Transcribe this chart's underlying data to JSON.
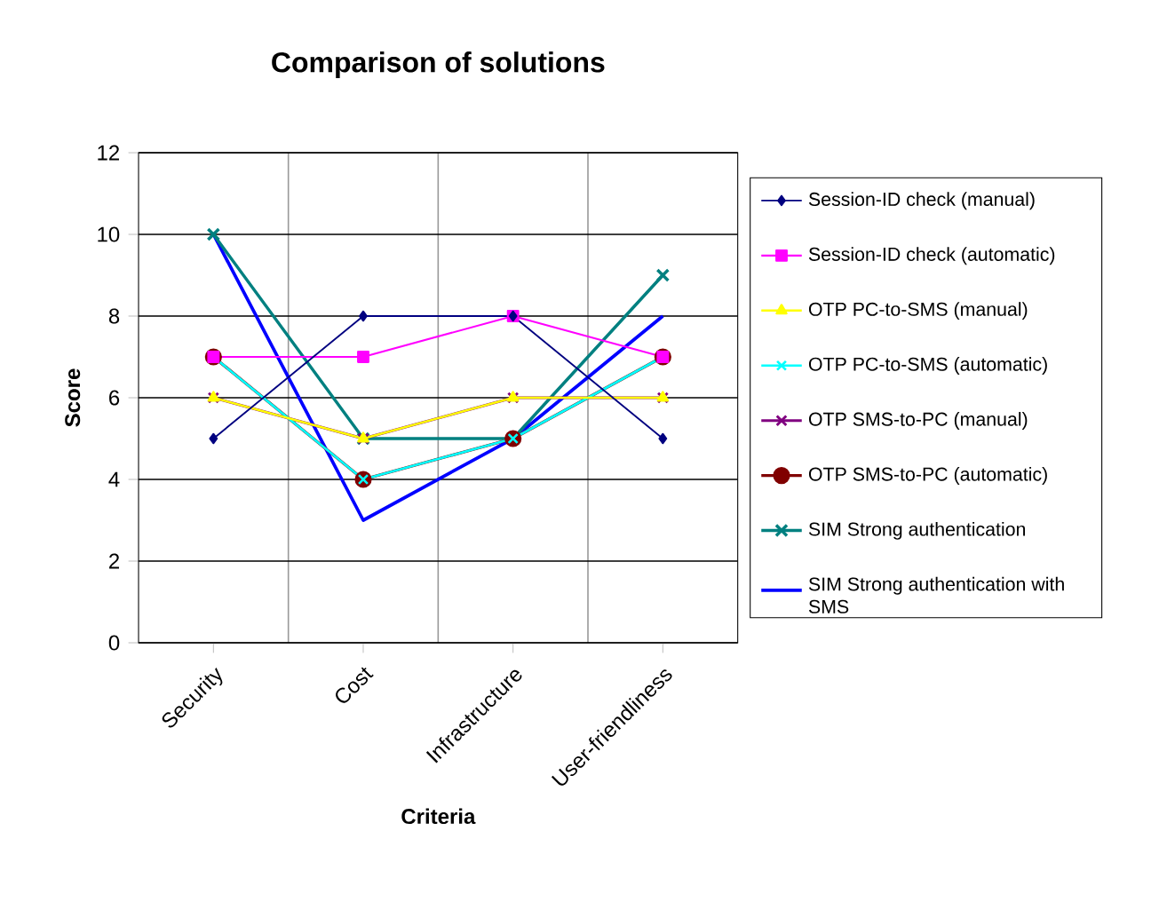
{
  "chart_data": {
    "type": "line",
    "title": "Comparison of solutions",
    "xlabel": "Criteria",
    "ylabel": "Score",
    "categories": [
      "Security",
      "Cost",
      "Infrastructure",
      "User-friendliness"
    ],
    "ylim": [
      0,
      12
    ],
    "yticks": [
      0,
      2,
      4,
      6,
      8,
      10,
      12
    ],
    "grid": true,
    "legend": "right",
    "series": [
      {
        "name": "Session-ID check (manual)",
        "color": "#000080",
        "marker": "diamond",
        "values": [
          5,
          8,
          8,
          5
        ]
      },
      {
        "name": "Session-ID check (automatic)",
        "color": "#ff00ff",
        "marker": "square",
        "values": [
          7,
          7,
          8,
          7
        ]
      },
      {
        "name": "OTP PC-to-SMS (manual)",
        "color": "#ffff00",
        "marker": "triangle",
        "values": [
          6,
          5,
          6,
          6
        ]
      },
      {
        "name": "OTP PC-to-SMS (automatic)",
        "color": "#00ffff",
        "marker": "cross",
        "values": [
          7,
          4,
          5,
          7
        ]
      },
      {
        "name": "OTP SMS-to-PC (manual)",
        "color": "#800080",
        "marker": "cross",
        "values": [
          6,
          5,
          6,
          6
        ]
      },
      {
        "name": "OTP SMS-to-PC (automatic)",
        "color": "#800000",
        "marker": "circle",
        "values": [
          7,
          4,
          5,
          7
        ]
      },
      {
        "name": "SIM Strong authentication",
        "color": "#008080",
        "marker": "cross",
        "values": [
          10,
          5,
          5,
          9
        ]
      },
      {
        "name": "SIM Strong authentication with SMS",
        "color": "#0000ff",
        "marker": "none",
        "values": [
          10,
          3,
          5,
          8
        ]
      }
    ]
  }
}
